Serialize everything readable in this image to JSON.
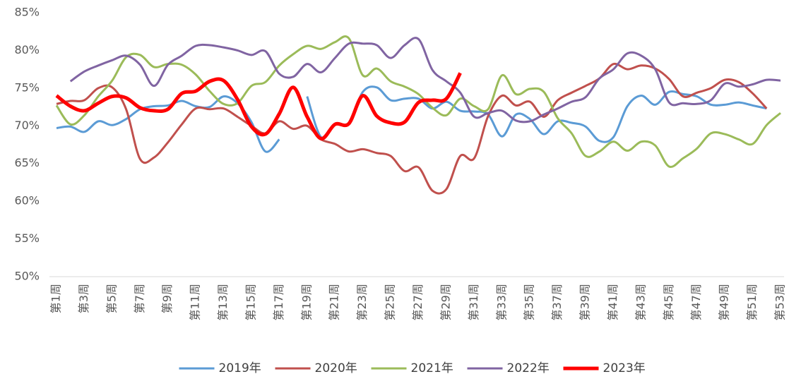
{
  "chart_data": {
    "type": "line",
    "categories": [
      "第1周",
      null,
      "第3周",
      null,
      "第5周",
      null,
      "第7周",
      null,
      "第9周",
      null,
      "第11周",
      null,
      "第13周",
      null,
      "第15周",
      null,
      "第17周",
      null,
      "第19周",
      null,
      "第21周",
      null,
      "第23周",
      null,
      "第25周",
      null,
      "第27周",
      null,
      "第29周",
      null,
      "第31周",
      null,
      "第33周",
      null,
      "第35周",
      null,
      "第37周",
      null,
      "第39周",
      null,
      "第41周",
      null,
      "第43周",
      null,
      "第45周",
      null,
      "第47周",
      null,
      "第49周",
      null,
      "第51周",
      null,
      "第53周"
    ],
    "ylim": [
      50,
      85
    ],
    "yticks": [
      {
        "value": 50,
        "label": "50%"
      },
      {
        "value": 55,
        "label": "55%"
      },
      {
        "value": 60,
        "label": "60%"
      },
      {
        "value": 65,
        "label": "65%"
      },
      {
        "value": 70,
        "label": "70%"
      },
      {
        "value": 75,
        "label": "75%"
      },
      {
        "value": 80,
        "label": "80%"
      },
      {
        "value": 85,
        "label": "85%"
      }
    ],
    "grid": false,
    "legend": "bottom",
    "series": [
      {
        "name": "2019年",
        "color": "#5b9bd5",
        "values": [
          69.7,
          69.9,
          69.2,
          70.6,
          70.1,
          70.9,
          72.2,
          72.6,
          72.7,
          73.3,
          72.6,
          72.5,
          73.9,
          73.0,
          70.5,
          66.6,
          68.2,
          null,
          73.9,
          68.5,
          70.2,
          70.4,
          74.5,
          75.1,
          73.4,
          73.6,
          73.6,
          72.3,
          73.2,
          72.0,
          71.9,
          71.5,
          68.6,
          71.5,
          70.9,
          68.9,
          70.6,
          70.4,
          69.9,
          68.0,
          68.5,
          72.6,
          74.0,
          72.8,
          74.5,
          74.2,
          73.9,
          72.8,
          72.8,
          73.1,
          72.7,
          72.3,
          null
        ]
      },
      {
        "name": "2020年",
        "color": "#c0504d",
        "values": [
          72.9,
          73.3,
          73.4,
          75.0,
          75.1,
          72.2,
          65.6,
          65.8,
          67.8,
          70.2,
          72.3,
          72.2,
          72.3,
          71.2,
          70.0,
          69.0,
          70.6,
          69.6,
          70.0,
          68.2,
          67.6,
          66.6,
          66.9,
          66.4,
          66.0,
          64.0,
          64.5,
          61.4,
          61.6,
          66.0,
          65.7,
          71.3,
          74.0,
          72.7,
          73.2,
          71.2,
          73.4,
          74.4,
          75.3,
          76.3,
          78.2,
          77.5,
          78.0,
          77.6,
          76.2,
          73.9,
          74.4,
          75.0,
          76.1,
          75.8,
          74.3,
          72.3,
          null
        ]
      },
      {
        "name": "2021年",
        "color": "#9bbb59",
        "values": [
          72.7,
          70.2,
          71.4,
          73.9,
          76.0,
          79.1,
          79.4,
          77.8,
          78.2,
          78.1,
          76.8,
          74.6,
          72.9,
          73.0,
          75.3,
          75.8,
          78.0,
          79.5,
          80.6,
          80.2,
          81.1,
          81.6,
          76.7,
          77.6,
          75.9,
          75.2,
          74.2,
          72.4,
          71.4,
          73.6,
          72.6,
          72.2,
          76.7,
          74.2,
          74.9,
          74.5,
          71.0,
          69.0,
          66.0,
          66.6,
          67.9,
          66.7,
          67.9,
          67.4,
          64.6,
          65.7,
          67.0,
          69.0,
          68.9,
          68.2,
          67.6,
          70.1,
          71.7
        ]
      },
      {
        "name": "2022年",
        "color": "#8064a2",
        "values": [
          null,
          75.9,
          77.2,
          78.0,
          78.7,
          79.3,
          78.1,
          75.3,
          78.1,
          79.3,
          80.6,
          80.7,
          80.4,
          80.0,
          79.4,
          79.9,
          76.9,
          76.5,
          78.2,
          77.1,
          79.0,
          80.9,
          80.9,
          80.7,
          79.0,
          80.7,
          81.5,
          77.4,
          75.9,
          74.4,
          71.2,
          71.7,
          72.0,
          70.7,
          70.6,
          71.5,
          72.3,
          73.2,
          73.8,
          76.3,
          77.5,
          79.6,
          79.3,
          77.5,
          73.1,
          73.0,
          72.9,
          73.4,
          75.6,
          75.2,
          75.5,
          76.1,
          76.0
        ]
      },
      {
        "name": "2023年",
        "color": "#ff0000",
        "values": [
          74.0,
          72.6,
          72.0,
          73.0,
          73.9,
          73.7,
          72.4,
          72.0,
          72.2,
          74.3,
          74.6,
          75.9,
          76.0,
          73.5,
          69.9,
          68.9,
          71.6,
          75.1,
          71.2,
          68.3,
          70.2,
          70.3,
          74.0,
          71.3,
          70.4,
          70.5,
          73.1,
          73.4,
          73.6,
          77.0,
          null,
          null,
          null,
          null,
          null,
          null,
          null,
          null,
          null,
          null,
          null,
          null,
          null,
          null,
          null,
          null,
          null,
          null,
          null,
          null,
          null,
          null,
          null
        ]
      }
    ]
  }
}
